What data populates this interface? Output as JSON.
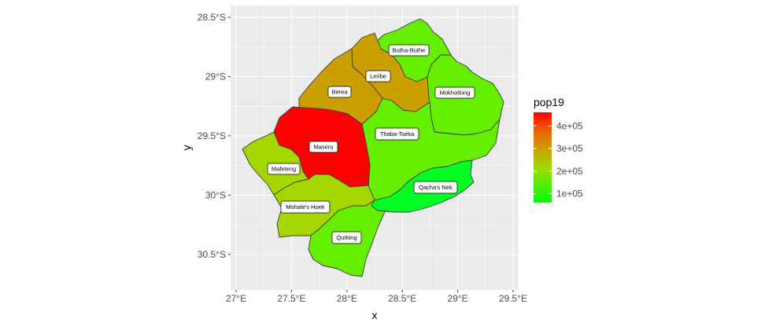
{
  "chart_data": {
    "type": "choropleth",
    "xlabel": "x",
    "ylabel": "y",
    "x_ticks": [
      "27°E",
      "27.5°E",
      "28°E",
      "28.5°E",
      "29°E",
      "29.5°E"
    ],
    "y_ticks": [
      "28.5°S",
      "29°S",
      "29.5°S",
      "30°S",
      "30.5°S"
    ],
    "xlim": [
      26.95,
      29.55
    ],
    "ylim": [
      -30.8,
      -28.4
    ],
    "legend": {
      "title": "pop19",
      "position": "right",
      "color_low": "#00ff00",
      "color_high": "#ff0000",
      "range": [
        60000,
        460000
      ],
      "breaks": [
        100000,
        200000,
        300000,
        400000
      ],
      "labels": [
        "1e+05",
        "2e+05",
        "3e+05",
        "4e+05"
      ]
    },
    "grid": true,
    "panel_background": "#ebebeb",
    "regions": [
      {
        "name": "Butha-Buthe",
        "color": "#66ee00"
      },
      {
        "name": "Leribe",
        "color": "#cc9f00"
      },
      {
        "name": "Berea",
        "color": "#cc9f00"
      },
      {
        "name": "Mokhotlong",
        "color": "#66ee00"
      },
      {
        "name": "Maseru",
        "color": "#ff0000"
      },
      {
        "name": "Thaba-Tseka",
        "color": "#66ee00"
      },
      {
        "name": "Mafeteng",
        "color": "#a5d600"
      },
      {
        "name": "Mohale's Hoek",
        "color": "#a5d600"
      },
      {
        "name": "Qacha's Nek",
        "color": "#00ff22"
      },
      {
        "name": "Quthing",
        "color": "#66ee00"
      }
    ]
  }
}
